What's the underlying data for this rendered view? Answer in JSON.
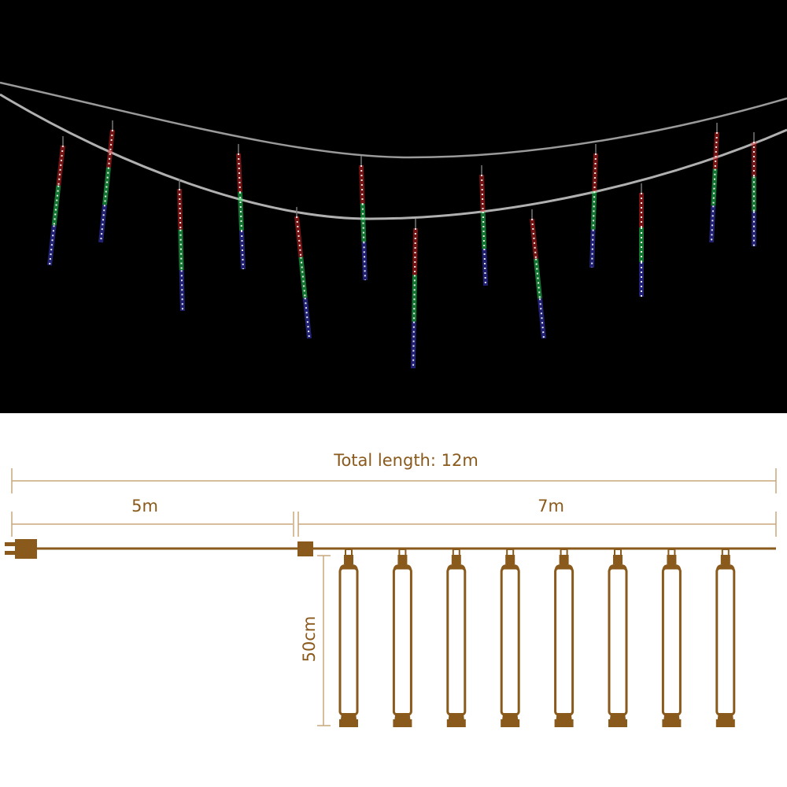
{
  "photo": {
    "subject": "meteor shower LED tube lights hanging on wire",
    "tube_colors": [
      "#ff2a2a",
      "#2aff6a",
      "#4a4aff"
    ]
  },
  "diagram": {
    "total_label": "Total length: 12m",
    "lead_label": "5m",
    "lit_label": "7m",
    "tube_label": "50cm",
    "tube_count": 8,
    "colors": {
      "primary": "#8a5a1c",
      "dimension": "#c9a77a"
    }
  }
}
